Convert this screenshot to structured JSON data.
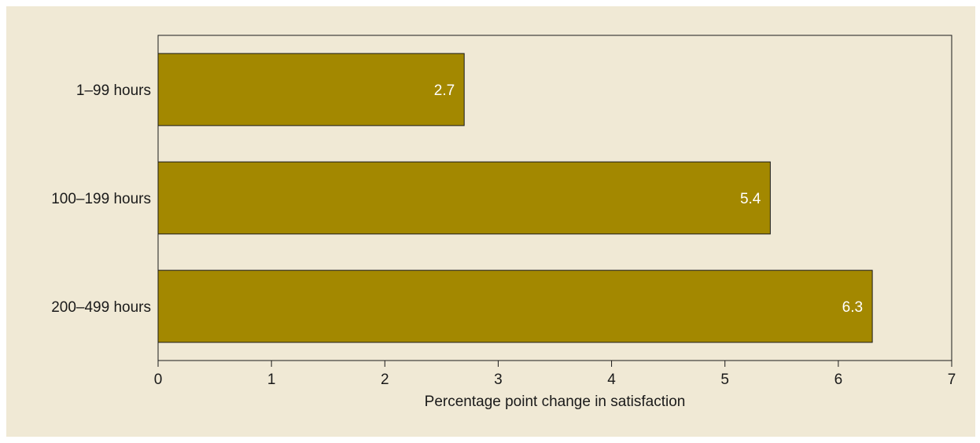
{
  "colors": {
    "background": "#F0E9D5",
    "bar": "#A38800",
    "bar_stroke": "#1A1A1A",
    "axis": "#1A1A1A",
    "text": "#1A1A1A",
    "data_label": "#FFFFFF"
  },
  "chart_data": {
    "type": "bar",
    "orientation": "horizontal",
    "categories": [
      "1–99 hours",
      "100–199 hours",
      "200–499 hours"
    ],
    "values": [
      2.7,
      5.4,
      6.3
    ],
    "data_labels": [
      "2.7",
      "5.4",
      "6.3"
    ],
    "title": "",
    "xlabel": "Percentage point change in satisfaction",
    "ylabel": "",
    "xlim": [
      0,
      7
    ],
    "xticks": [
      0,
      1,
      2,
      3,
      4,
      5,
      6,
      7
    ],
    "grid": false,
    "legend": "none"
  }
}
